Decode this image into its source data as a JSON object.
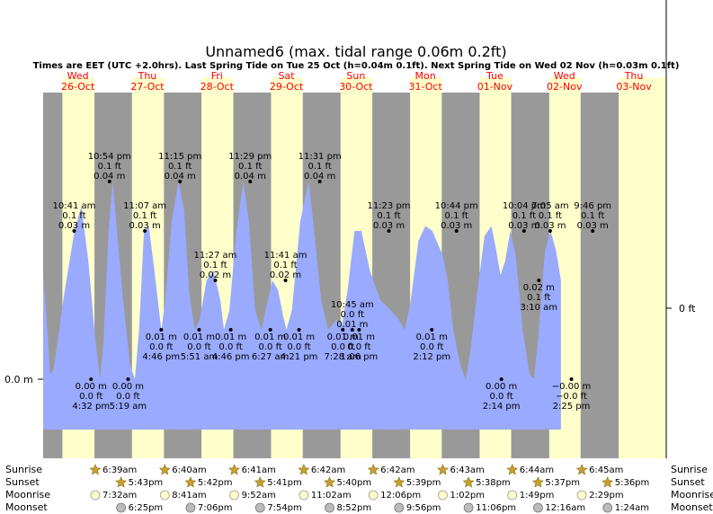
{
  "chart_data": {
    "type": "area",
    "title": "Unnamed6 (max. tidal range 0.06m 0.2ft)",
    "subtitle": "Times are EET (UTC +2.0hrs). Last Spring Tide on Tue 25 Oct (h=0.04m 0.1ft). Next Spring Tide on Wed 02 Nov (h=0.03m 0.1ft)",
    "left_axis_label": "0.0 m",
    "right_axis_label": "0 ft",
    "x_range_days": [
      0,
      8.95
    ],
    "y_range_m": [
      -0.015,
      0.058
    ],
    "colors": {
      "night": "#999999",
      "day": "#ffffcc",
      "tide": "#99aaff",
      "date": "#ff0000",
      "star": "#c8a030",
      "moon": "#ffffcc",
      "moonset": "#bbbbbb"
    },
    "days": [
      {
        "name": "Wed",
        "date": "26-Oct"
      },
      {
        "name": "Thu",
        "date": "27-Oct"
      },
      {
        "name": "Fri",
        "date": "28-Oct"
      },
      {
        "name": "Sat",
        "date": "29-Oct"
      },
      {
        "name": "Sun",
        "date": "30-Oct"
      },
      {
        "name": "Mon",
        "date": "31-Oct"
      },
      {
        "name": "Tue",
        "date": "01-Nov"
      },
      {
        "name": "Wed",
        "date": "02-Nov"
      },
      {
        "name": "Thu",
        "date": "03-Nov"
      }
    ],
    "tide_curve": [
      [
        0.0,
        0.021
      ],
      [
        0.05,
        0.012
      ],
      [
        0.1,
        0.001
      ],
      [
        0.15,
        0.002
      ],
      [
        0.3,
        0.017
      ],
      [
        0.45,
        0.03
      ],
      [
        0.55,
        0.035
      ],
      [
        0.65,
        0.024
      ],
      [
        0.75,
        0.008
      ],
      [
        0.82,
        0.0
      ],
      [
        0.87,
        0.008
      ],
      [
        0.94,
        0.03
      ],
      [
        1.0,
        0.04
      ],
      [
        1.05,
        0.032
      ],
      [
        1.15,
        0.016
      ],
      [
        1.25,
        0.003
      ],
      [
        1.32,
        0.0
      ],
      [
        1.38,
        0.01
      ],
      [
        1.45,
        0.03
      ],
      [
        1.52,
        0.031
      ],
      [
        1.6,
        0.022
      ],
      [
        1.7,
        0.01
      ],
      [
        1.75,
        0.015
      ],
      [
        1.85,
        0.032
      ],
      [
        1.95,
        0.04
      ],
      [
        2.03,
        0.034
      ],
      [
        2.1,
        0.018
      ],
      [
        2.18,
        0.01
      ],
      [
        2.25,
        0.012
      ],
      [
        2.35,
        0.02
      ],
      [
        2.45,
        0.022
      ],
      [
        2.55,
        0.016
      ],
      [
        2.6,
        0.01
      ],
      [
        2.68,
        0.014
      ],
      [
        2.78,
        0.03
      ],
      [
        2.88,
        0.04
      ],
      [
        2.96,
        0.032
      ],
      [
        3.05,
        0.014
      ],
      [
        3.14,
        0.01
      ],
      [
        3.2,
        0.014
      ],
      [
        3.3,
        0.02
      ],
      [
        3.38,
        0.018
      ],
      [
        3.45,
        0.013
      ],
      [
        3.5,
        0.01
      ],
      [
        3.58,
        0.014
      ],
      [
        3.7,
        0.032
      ],
      [
        3.82,
        0.04
      ],
      [
        3.9,
        0.03
      ],
      [
        4.0,
        0.016
      ],
      [
        4.1,
        0.01
      ],
      [
        4.22,
        0.012
      ],
      [
        4.3,
        0.011
      ],
      [
        4.38,
        0.018
      ],
      [
        4.48,
        0.03
      ],
      [
        4.58,
        0.03
      ],
      [
        4.7,
        0.022
      ],
      [
        4.85,
        0.016
      ],
      [
        5.0,
        0.014
      ],
      [
        5.12,
        0.012
      ],
      [
        5.2,
        0.01
      ],
      [
        5.28,
        0.015
      ],
      [
        5.4,
        0.028
      ],
      [
        5.5,
        0.031
      ],
      [
        5.6,
        0.03
      ],
      [
        5.75,
        0.025
      ],
      [
        5.82,
        0.02
      ],
      [
        5.9,
        0.01
      ],
      [
        6.0,
        0.003
      ],
      [
        6.08,
        0.0
      ],
      [
        6.15,
        0.006
      ],
      [
        6.25,
        0.018
      ],
      [
        6.35,
        0.029
      ],
      [
        6.45,
        0.031
      ],
      [
        6.52,
        0.026
      ],
      [
        6.58,
        0.021
      ],
      [
        6.65,
        0.024
      ],
      [
        6.72,
        0.03
      ],
      [
        6.8,
        0.025
      ],
      [
        6.9,
        0.01
      ],
      [
        7.0,
        0.001
      ],
      [
        7.06,
        0.0
      ],
      [
        7.12,
        0.008
      ],
      [
        7.22,
        0.026
      ],
      [
        7.3,
        0.03
      ],
      [
        7.38,
        0.026
      ],
      [
        7.45,
        0.02
      ]
    ],
    "tides": [
      {
        "t": 0.446,
        "h": 0.03,
        "time": "10:41 am",
        "ft": "0.1 ft",
        "m": "0.03 m",
        "pos": "above"
      },
      {
        "t": 0.6889,
        "h": 0.0,
        "time": "4:32 pm",
        "ft": "0.0 ft",
        "m": "0.00 m",
        "pos": "below"
      },
      {
        "t": 0.9542,
        "h": 0.04,
        "time": "10:54 pm",
        "ft": "0.1 ft",
        "m": "0.04 m",
        "pos": "above"
      },
      {
        "t": 1.2215,
        "h": 0.0,
        "time": "5:19 am",
        "ft": "0.0 ft",
        "m": "0.00 m",
        "pos": "below"
      },
      {
        "t": 1.4632,
        "h": 0.03,
        "time": "11:07 am",
        "ft": "0.1 ft",
        "m": "0.03 m",
        "pos": "above"
      },
      {
        "t": 1.6986,
        "h": 0.01,
        "time": "4:46 pm",
        "ft": "0.0 ft",
        "m": "0.01 m",
        "pos": "below"
      },
      {
        "t": 1.9688,
        "h": 0.04,
        "time": "11:15 pm",
        "ft": "0.1 ft",
        "m": "0.04 m",
        "pos": "above"
      },
      {
        "t": 2.2438,
        "h": 0.01,
        "time": "5:51 am",
        "ft": "0.0 ft",
        "m": "0.01 m",
        "pos": "below"
      },
      {
        "t": 2.4771,
        "h": 0.02,
        "time": "11:27 am",
        "ft": "0.1 ft",
        "m": "0.02 m",
        "pos": "above"
      },
      {
        "t": 2.6986,
        "h": 0.01,
        "time": "4:46 pm",
        "ft": "0.0 ft",
        "m": "0.01 m",
        "pos": "below"
      },
      {
        "t": 2.9785,
        "h": 0.04,
        "time": "11:29 pm",
        "ft": "0.1 ft",
        "m": "0.04 m",
        "pos": "above"
      },
      {
        "t": 3.2688,
        "h": 0.01,
        "time": "6:27 am",
        "ft": "0.0 ft",
        "m": "0.01 m",
        "pos": "below"
      },
      {
        "t": 3.4868,
        "h": 0.02,
        "time": "11:41 am",
        "ft": "0.1 ft",
        "m": "0.02 m",
        "pos": "above"
      },
      {
        "t": 3.6813,
        "h": 0.01,
        "time": "4:21 pm",
        "ft": "0.0 ft",
        "m": "0.01 m",
        "pos": "below"
      },
      {
        "t": 3.9799,
        "h": 0.04,
        "time": "11:31 pm",
        "ft": "0.1 ft",
        "m": "0.04 m",
        "pos": "above"
      },
      {
        "t": 4.3111,
        "h": 0.01,
        "time": "7:28 am",
        "ft": "0.0 ft",
        "m": "0.01 m",
        "pos": "below"
      },
      {
        "t": 4.4479,
        "h": 0.01,
        "time": "10:45 am",
        "ft": "0.0 ft",
        "m": "0.01 m",
        "pos": "above"
      },
      {
        "t": 4.5458,
        "h": 0.01,
        "time": "1:06 pm",
        "ft": "0.0 ft",
        "m": "0.01 m",
        "pos": "below"
      },
      {
        "t": 4.9743,
        "h": 0.03,
        "time": "11:23 pm",
        "ft": "0.1 ft",
        "m": "0.03 m",
        "pos": "above"
      },
      {
        "t": 5.5917,
        "h": 0.01,
        "time": "2:12 pm",
        "ft": "0.0 ft",
        "m": "0.01 m",
        "pos": "below"
      },
      {
        "t": 5.9472,
        "h": 0.03,
        "time": "10:44 pm",
        "ft": "0.1 ft",
        "m": "0.03 m",
        "pos": "above"
      },
      {
        "t": 6.5931,
        "h": 0.0,
        "time": "2:14 pm",
        "ft": "0.0 ft",
        "m": "0.00 m",
        "pos": "below"
      },
      {
        "t": 6.9194,
        "h": 0.03,
        "time": "10:04 pm",
        "ft": "0.1 ft",
        "m": "0.03 m",
        "pos": "above"
      },
      {
        "t": 7.1319,
        "h": 0.02,
        "time": "3:10 am",
        "ft": "0.1 ft",
        "m": "0.02 m",
        "pos": "below"
      },
      {
        "t": 7.2951,
        "h": 0.03,
        "time": "7:05 am",
        "ft": "0.1 ft",
        "m": "0.03 m",
        "pos": "above"
      },
      {
        "t": 7.6007,
        "h": -0.0,
        "time": "2:25 pm",
        "ft": "−0.0 ft",
        "m": "−0.00 m",
        "pos": "below"
      },
      {
        "t": 7.9069,
        "h": 0.03,
        "time": "9:46 pm",
        "ft": "0.1 ft",
        "m": "0.03 m",
        "pos": "above"
      }
    ],
    "sun": [
      {
        "rise": "6:39am",
        "set": "5:43pm",
        "rise_t": 0.2771,
        "set_t": 0.7382
      },
      {
        "rise": "6:40am",
        "set": "5:42pm",
        "rise_t": 1.2778,
        "set_t": 1.7375
      },
      {
        "rise": "6:41am",
        "set": "5:41pm",
        "rise_t": 2.2785,
        "set_t": 2.7368
      },
      {
        "rise": "6:42am",
        "set": "5:40pm",
        "rise_t": 3.2792,
        "set_t": 3.7361
      },
      {
        "rise": "6:42am",
        "set": "5:39pm",
        "rise_t": 4.2792,
        "set_t": 4.7354
      },
      {
        "rise": "6:43am",
        "set": "5:38pm",
        "rise_t": 5.2799,
        "set_t": 5.7347
      },
      {
        "rise": "6:44am",
        "set": "5:37pm",
        "rise_t": 6.2806,
        "set_t": 6.734
      },
      {
        "rise": "6:45am",
        "set": "5:36pm",
        "rise_t": 7.2813,
        "set_t": 7.7333
      }
    ],
    "moonrise": [
      "7:32am",
      "8:41am",
      "9:52am",
      "11:02am",
      "12:06pm",
      "1:02pm",
      "1:49pm",
      "2:29pm"
    ],
    "moonset": [
      "6:25pm",
      "7:06pm",
      "7:54pm",
      "8:52pm",
      "9:56pm",
      "11:06pm",
      "12:16am",
      "1:24am"
    ],
    "row_labels": {
      "sunrise": "Sunrise",
      "sunset": "Sunset",
      "moonrise": "Moonrise",
      "moonset": "Moonset"
    }
  }
}
